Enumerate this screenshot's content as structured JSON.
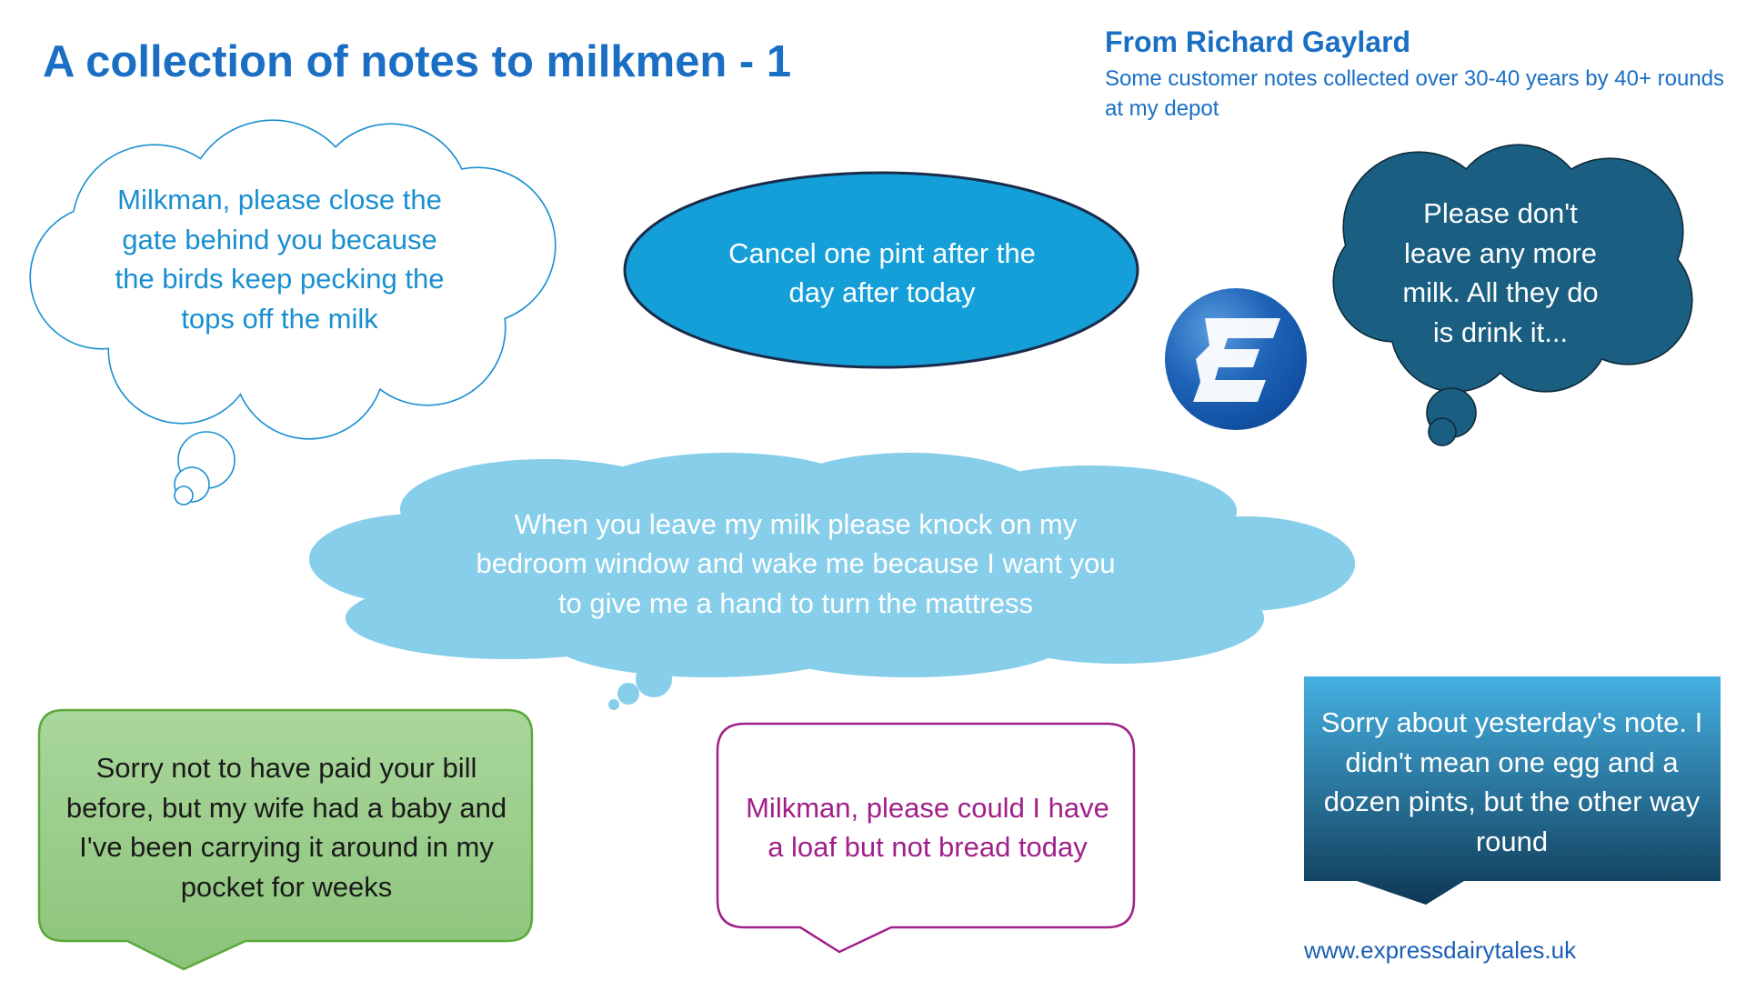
{
  "header": {
    "title": "A collection of notes to milkmen - 1",
    "author": "From Richard Gaylard",
    "subtitle": "Some customer notes collected over 30-40 years by 40+ rounds at my depot"
  },
  "notes": [
    {
      "text": "Milkman, please close the gate behind you because the birds keep pecking the tops off the milk",
      "shape": "thought-cloud",
      "color": "#1a8fd0"
    },
    {
      "text": "Cancel one pint after the day after today",
      "shape": "ellipse",
      "color": "#ffffff"
    },
    {
      "text": "Please don't leave any more milk. All they do is drink it...",
      "shape": "thought-cloud",
      "color": "#ffffff"
    },
    {
      "text": "When you leave my milk please knock on my bedroom window and wake me because I want you to give me a hand to turn the mattress",
      "shape": "thought-cloud",
      "color": "#ffffff"
    },
    {
      "text": "Sorry not to have paid your bill before, but my wife had a baby and I've been carrying it around in my pocket for weeks",
      "shape": "speech-box",
      "color": "#1a1a1a"
    },
    {
      "text": "Milkman, please could I have a loaf but not bread today",
      "shape": "speech-box",
      "color": "#a0208a"
    },
    {
      "text": "Sorry about yesterday's note. I didn't mean one egg and a dozen pints, but the other way round",
      "shape": "speech-box",
      "color": "#ffffff"
    }
  ],
  "logo": {
    "letter": "E",
    "icon": "express-dairy-logo"
  },
  "footer": {
    "url": "www.expressdairytales.uk"
  },
  "colors": {
    "accent": "#1a6fc4",
    "ellipse": "#149fd9",
    "dark_cloud": "#1a5f82",
    "light_cloud": "#87ceeb",
    "green": "#9ccd88",
    "purple": "#a0208a"
  }
}
